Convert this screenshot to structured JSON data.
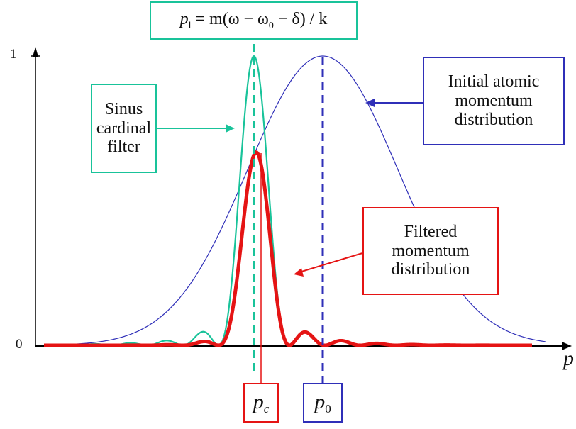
{
  "formula_box": {
    "parts": [
      "p",
      "l",
      " = m(ω − ω",
      "0",
      " − δ) / k"
    ]
  },
  "labels": {
    "sinc_filter": [
      "Sinus",
      "cardinal",
      "filter"
    ],
    "initial_distribution": [
      "Initial atomic",
      "momentum",
      "distribution"
    ],
    "filtered_distribution": [
      "Filtered",
      "momentum",
      "distribution"
    ]
  },
  "markers": {
    "pc": {
      "main": "p",
      "sub": "c"
    },
    "p0": {
      "main": "p",
      "sub": "0"
    }
  },
  "axis": {
    "y_top": "1",
    "y_zero": "0",
    "x_label": "p"
  },
  "colors": {
    "sinc": "#19c39a",
    "initial": "#2f2fb8",
    "filtered": "#e51414",
    "axis": "#000000"
  }
}
